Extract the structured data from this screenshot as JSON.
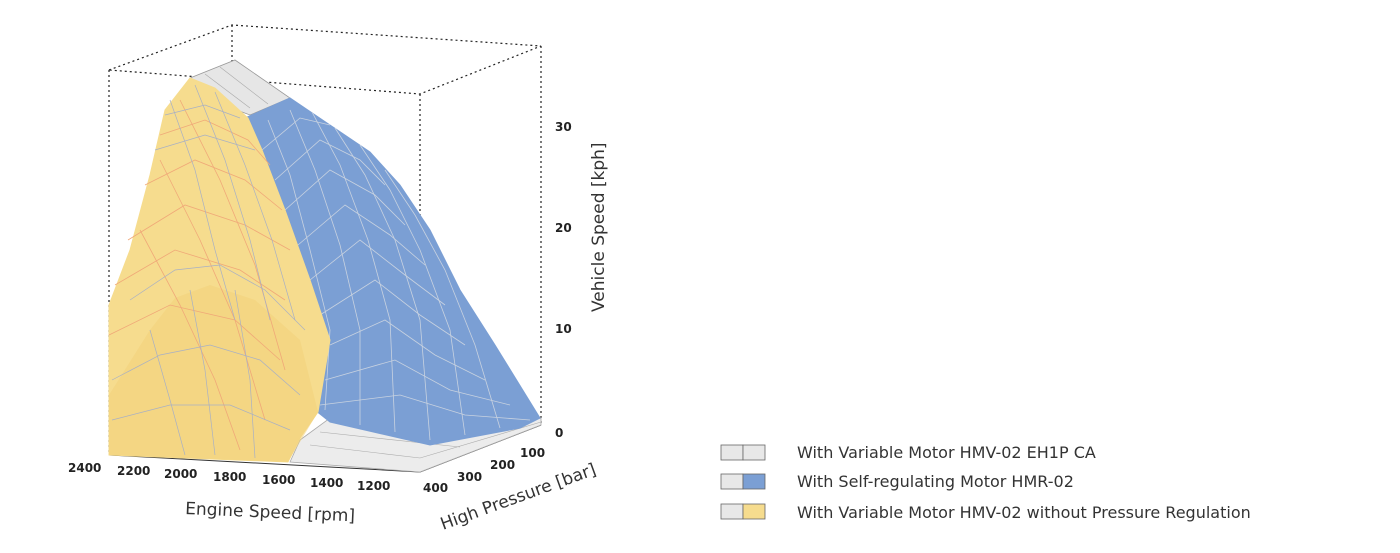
{
  "chart_data": {
    "type": "surface",
    "xlabel": "Engine Speed [rpm]",
    "ylabel": "High Pressure [bar]",
    "zlabel": "Vehicle Speed [kph]",
    "x_ticks": [
      "2400",
      "2200",
      "2000",
      "1800",
      "1600",
      "1400",
      "1200"
    ],
    "y_ticks": [
      "100",
      "200",
      "300",
      "400"
    ],
    "z_ticks": [
      "0",
      "10",
      "20",
      "30"
    ],
    "xlim": [
      1100,
      2400
    ],
    "ylim": [
      0,
      400
    ],
    "zlim": [
      0,
      35
    ],
    "legend_position": "bottom-right",
    "series": [
      {
        "name": "With Variable Motor HMV-02 EH1P CA",
        "color": "#e8e8e8",
        "swatch": [
          "#e8e8e8",
          "#e8e8e8"
        ]
      },
      {
        "name": "With Self-regulating Motor HMR-02",
        "color": "#7b9fd4",
        "swatch": [
          "#e8e8e8",
          "#7b9fd4"
        ]
      },
      {
        "name": "With Variable Motor HMV-02 without Pressure Regulation",
        "color": "#f6dc8e",
        "swatch": [
          "#e8e8e8",
          "#f6dc8e"
        ]
      }
    ]
  },
  "colors": {
    "grey_surface": "#e6e6e6",
    "blue_surface": "#7b9fd4",
    "yellow_surface": "#f6dc8e",
    "blue_grid": "#c8d2e0",
    "yellow_grid": "#f0a878",
    "box_line": "#222222"
  }
}
